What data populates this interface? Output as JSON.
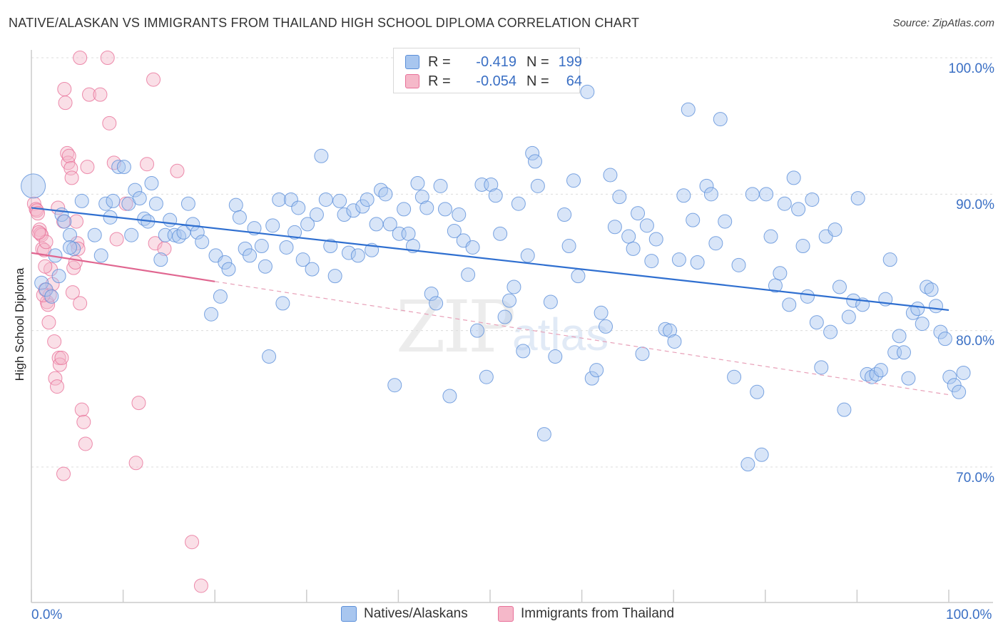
{
  "title": "NATIVE/ALASKAN VS IMMIGRANTS FROM THAILAND HIGH SCHOOL DIPLOMA CORRELATION CHART",
  "source": "Source: ZipAtlas.com",
  "watermark": {
    "zip": "ZIP",
    "atlas": "atlas"
  },
  "legend_top": [
    {
      "r_label": "R =",
      "r_value": "-0.419",
      "n_label": "N =",
      "n_value": "199",
      "color": "#a8c6ef"
    },
    {
      "r_label": "R =",
      "r_value": "-0.054",
      "n_label": "N =",
      "n_value": "64",
      "color": "#f5b8c9"
    }
  ],
  "legend_bottom": [
    {
      "label": "Natives/Alaskans",
      "color": "#a8c6ef"
    },
    {
      "label": "Immigrants from Thailand",
      "color": "#f5b8c9"
    }
  ],
  "chart_data": {
    "type": "scatter",
    "title": "NATIVE/ALASKAN VS IMMIGRANTS FROM THAILAND HIGH SCHOOL DIPLOMA CORRELATION CHART",
    "xlabel": "",
    "ylabel": "High School Diploma",
    "x_tick_labels": [
      "0.0%",
      "100.0%"
    ],
    "y_tick_labels": [
      "100.0%",
      "90.0%",
      "80.0%",
      "70.0%"
    ],
    "y_ticks": [
      100,
      90,
      80,
      70
    ],
    "xlim": [
      0,
      100
    ],
    "ylim": [
      60,
      102
    ],
    "grid": true,
    "legend_placement": "bottom",
    "series": [
      {
        "name": "Natives/Alaskans",
        "color": "#5b8fd9",
        "fill": "#a8c6ef",
        "trend": {
          "x0": 0,
          "y0": 89.0,
          "x1": 100,
          "y1": 81.5
        },
        "points": [
          [
            0.2,
            90.6
          ],
          [
            1.1,
            83.5
          ],
          [
            1.6,
            83.0
          ],
          [
            2.2,
            82.5
          ],
          [
            2.6,
            85.5
          ],
          [
            3.0,
            84.0
          ],
          [
            3.3,
            88.5
          ],
          [
            3.6,
            88.0
          ],
          [
            4.2,
            87.0
          ],
          [
            4.6,
            86.0
          ],
          [
            5.5,
            89.5
          ],
          [
            6.9,
            87.0
          ],
          [
            7.6,
            85.5
          ],
          [
            8.1,
            89.3
          ],
          [
            8.6,
            88.3
          ],
          [
            8.9,
            89.5
          ],
          [
            9.5,
            92.0
          ],
          [
            10.1,
            92.0
          ],
          [
            10.6,
            89.3
          ],
          [
            10.9,
            87.0
          ],
          [
            11.3,
            90.3
          ],
          [
            11.8,
            89.7
          ],
          [
            12.3,
            88.2
          ],
          [
            12.7,
            88.0
          ],
          [
            13.1,
            90.8
          ],
          [
            13.6,
            89.3
          ],
          [
            14.1,
            85.2
          ],
          [
            14.6,
            87.0
          ],
          [
            15.1,
            88.1
          ],
          [
            15.6,
            87.0
          ],
          [
            16.1,
            86.9
          ],
          [
            16.6,
            87.2
          ],
          [
            17.1,
            89.3
          ],
          [
            17.6,
            87.8
          ],
          [
            18.1,
            87.2
          ],
          [
            18.6,
            86.5
          ],
          [
            19.6,
            81.2
          ],
          [
            20.1,
            85.5
          ],
          [
            20.6,
            82.5
          ],
          [
            21.1,
            85.0
          ],
          [
            21.5,
            84.5
          ],
          [
            22.3,
            89.2
          ],
          [
            22.7,
            88.3
          ],
          [
            23.3,
            86.0
          ],
          [
            23.8,
            85.5
          ],
          [
            24.3,
            87.5
          ],
          [
            25.1,
            86.2
          ],
          [
            25.5,
            84.7
          ],
          [
            25.9,
            78.1
          ],
          [
            26.3,
            87.7
          ],
          [
            27.0,
            89.6
          ],
          [
            27.4,
            82.0
          ],
          [
            27.8,
            86.1
          ],
          [
            28.3,
            89.6
          ],
          [
            28.7,
            87.2
          ],
          [
            29.1,
            89.0
          ],
          [
            29.6,
            85.2
          ],
          [
            30.1,
            87.8
          ],
          [
            30.6,
            84.5
          ],
          [
            31.1,
            88.5
          ],
          [
            31.6,
            92.8
          ],
          [
            32.1,
            89.6
          ],
          [
            32.6,
            86.2
          ],
          [
            33.1,
            84.0
          ],
          [
            33.6,
            89.5
          ],
          [
            34.1,
            88.5
          ],
          [
            34.6,
            85.7
          ],
          [
            35.1,
            88.8
          ],
          [
            35.6,
            85.5
          ],
          [
            36.1,
            89.1
          ],
          [
            36.6,
            89.6
          ],
          [
            37.1,
            85.9
          ],
          [
            37.6,
            87.8
          ],
          [
            38.1,
            90.3
          ],
          [
            38.6,
            90.0
          ],
          [
            39.1,
            87.8
          ],
          [
            39.6,
            76.0
          ],
          [
            40.1,
            87.1
          ],
          [
            40.6,
            88.9
          ],
          [
            41.1,
            87.1
          ],
          [
            41.6,
            86.2
          ],
          [
            42.1,
            90.8
          ],
          [
            42.6,
            89.8
          ],
          [
            43.1,
            89.0
          ],
          [
            43.6,
            82.7
          ],
          [
            44.1,
            82.0
          ],
          [
            44.6,
            90.6
          ],
          [
            45.1,
            88.9
          ],
          [
            45.6,
            75.2
          ],
          [
            46.1,
            87.3
          ],
          [
            46.6,
            88.5
          ],
          [
            47.1,
            86.6
          ],
          [
            47.6,
            84.1
          ],
          [
            48.1,
            86.1
          ],
          [
            48.6,
            80.0
          ],
          [
            49.1,
            90.7
          ],
          [
            49.6,
            76.6
          ],
          [
            50.1,
            90.7
          ],
          [
            50.6,
            89.9
          ],
          [
            51.1,
            87.1
          ],
          [
            51.6,
            81.0
          ],
          [
            52.1,
            82.2
          ],
          [
            52.6,
            83.2
          ],
          [
            53.1,
            89.3
          ],
          [
            53.6,
            78.5
          ],
          [
            54.1,
            85.5
          ],
          [
            54.6,
            93.0
          ],
          [
            54.9,
            92.4
          ],
          [
            55.2,
            90.6
          ],
          [
            55.9,
            72.4
          ],
          [
            56.6,
            82.1
          ],
          [
            57.1,
            78.1
          ],
          [
            58.1,
            88.5
          ],
          [
            58.6,
            86.2
          ],
          [
            59.1,
            91.0
          ],
          [
            59.6,
            84.0
          ],
          [
            60.6,
            97.5
          ],
          [
            61.1,
            76.5
          ],
          [
            61.6,
            77.1
          ],
          [
            62.1,
            81.3
          ],
          [
            62.6,
            80.3
          ],
          [
            63.1,
            91.4
          ],
          [
            63.6,
            87.6
          ],
          [
            64.1,
            89.8
          ],
          [
            65.1,
            86.9
          ],
          [
            65.6,
            86.0
          ],
          [
            66.1,
            88.6
          ],
          [
            66.6,
            78.3
          ],
          [
            67.1,
            87.7
          ],
          [
            67.6,
            85.1
          ],
          [
            68.1,
            86.7
          ],
          [
            69.1,
            80.1
          ],
          [
            69.6,
            80.0
          ],
          [
            70.1,
            79.2
          ],
          [
            70.6,
            85.2
          ],
          [
            71.1,
            89.9
          ],
          [
            71.6,
            96.2
          ],
          [
            72.1,
            88.1
          ],
          [
            72.6,
            85.0
          ],
          [
            73.6,
            90.6
          ],
          [
            74.1,
            90.0
          ],
          [
            74.6,
            86.4
          ],
          [
            75.1,
            95.5
          ],
          [
            75.6,
            88.0
          ],
          [
            76.6,
            76.6
          ],
          [
            77.1,
            84.8
          ],
          [
            78.1,
            70.2
          ],
          [
            78.6,
            90.0
          ],
          [
            79.1,
            75.5
          ],
          [
            79.6,
            70.9
          ],
          [
            80.1,
            90.0
          ],
          [
            80.6,
            86.9
          ],
          [
            81.1,
            83.3
          ],
          [
            81.6,
            84.2
          ],
          [
            82.1,
            89.3
          ],
          [
            82.6,
            81.9
          ],
          [
            83.1,
            91.2
          ],
          [
            83.6,
            88.9
          ],
          [
            84.1,
            86.2
          ],
          [
            84.6,
            82.5
          ],
          [
            85.1,
            89.6
          ],
          [
            85.6,
            80.6
          ],
          [
            86.1,
            77.3
          ],
          [
            86.6,
            86.9
          ],
          [
            87.1,
            79.9
          ],
          [
            87.6,
            87.4
          ],
          [
            88.1,
            83.2
          ],
          [
            88.6,
            74.2
          ],
          [
            89.1,
            81.0
          ],
          [
            89.6,
            82.2
          ],
          [
            90.1,
            89.7
          ],
          [
            90.6,
            81.9
          ],
          [
            91.1,
            76.8
          ],
          [
            91.6,
            76.6
          ],
          [
            92.1,
            76.8
          ],
          [
            92.6,
            77.1
          ],
          [
            93.1,
            82.3
          ],
          [
            93.6,
            85.2
          ],
          [
            94.1,
            78.4
          ],
          [
            94.6,
            79.6
          ],
          [
            95.1,
            78.4
          ],
          [
            95.6,
            76.5
          ],
          [
            96.1,
            81.3
          ],
          [
            96.6,
            81.6
          ],
          [
            97.1,
            80.5
          ],
          [
            97.6,
            83.2
          ],
          [
            98.1,
            83.0
          ],
          [
            98.6,
            81.8
          ],
          [
            99.1,
            79.9
          ],
          [
            99.6,
            79.4
          ],
          [
            100.1,
            76.6
          ],
          [
            100.6,
            76.0
          ],
          [
            101.1,
            75.5
          ],
          [
            101.6,
            76.9
          ],
          [
            4.2,
            86.1
          ]
        ]
      },
      {
        "name": "Immigrants from Thailand",
        "color": "#e87099",
        "fill": "#f5b8c9",
        "trend": {
          "x0": 0,
          "y0": 85.7,
          "x1": 20,
          "y1": 83.6
        },
        "trend_dashed": {
          "x0": 20,
          "y0": 83.6,
          "x1": 100,
          "y1": 75.3
        },
        "points": [
          [
            0.3,
            89.3
          ],
          [
            0.5,
            88.9
          ],
          [
            0.6,
            88.8
          ],
          [
            0.7,
            88.6
          ],
          [
            0.9,
            87.4
          ],
          [
            1.0,
            87.1
          ],
          [
            1.1,
            87.0
          ],
          [
            1.2,
            86.0
          ],
          [
            1.4,
            85.9
          ],
          [
            1.5,
            83.0
          ],
          [
            1.7,
            82.1
          ],
          [
            1.8,
            81.9
          ],
          [
            1.9,
            80.6
          ],
          [
            2.0,
            82.6
          ],
          [
            2.1,
            84.5
          ],
          [
            2.3,
            83.4
          ],
          [
            2.5,
            79.2
          ],
          [
            2.6,
            76.5
          ],
          [
            2.8,
            75.9
          ],
          [
            3.0,
            78.0
          ],
          [
            3.1,
            77.5
          ],
          [
            3.3,
            78.0
          ],
          [
            3.5,
            88.0
          ],
          [
            3.6,
            97.7
          ],
          [
            3.7,
            96.7
          ],
          [
            3.9,
            93.0
          ],
          [
            4.0,
            92.3
          ],
          [
            4.1,
            92.8
          ],
          [
            4.3,
            91.9
          ],
          [
            4.4,
            91.2
          ],
          [
            4.5,
            82.8
          ],
          [
            4.6,
            84.6
          ],
          [
            4.8,
            85.0
          ],
          [
            5.0,
            86.4
          ],
          [
            5.1,
            86.0
          ],
          [
            5.3,
            82.0
          ],
          [
            5.5,
            74.2
          ],
          [
            5.7,
            73.3
          ],
          [
            5.9,
            71.7
          ],
          [
            6.1,
            92.0
          ],
          [
            6.3,
            97.3
          ],
          [
            7.5,
            97.3
          ],
          [
            8.3,
            100.0
          ],
          [
            8.5,
            95.2
          ],
          [
            9.0,
            92.3
          ],
          [
            9.3,
            86.7
          ],
          [
            10.3,
            89.3
          ],
          [
            11.4,
            70.3
          ],
          [
            11.7,
            74.7
          ],
          [
            12.6,
            92.2
          ],
          [
            13.3,
            98.4
          ],
          [
            13.5,
            86.4
          ],
          [
            14.5,
            86.0
          ],
          [
            15.9,
            91.7
          ],
          [
            17.5,
            64.5
          ],
          [
            18.5,
            61.3
          ],
          [
            3.5,
            69.5
          ],
          [
            1.6,
            86.5
          ],
          [
            2.9,
            89.0
          ],
          [
            4.9,
            88.0
          ],
          [
            1.3,
            82.6
          ],
          [
            1.5,
            84.7
          ],
          [
            0.8,
            87.2
          ],
          [
            5.3,
            100.0
          ]
        ]
      }
    ]
  }
}
